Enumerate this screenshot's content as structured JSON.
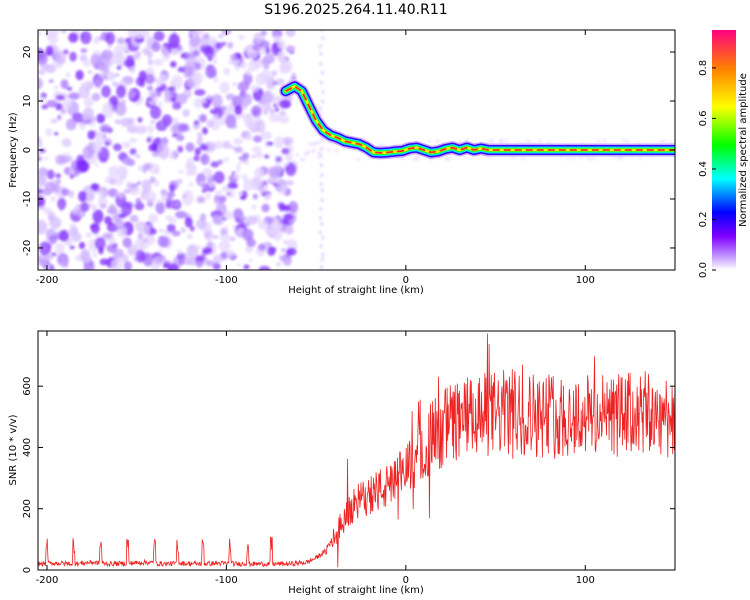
{
  "title": "S196.2025.264.11.40.R11",
  "chart_data": [
    {
      "type": "heatmap",
      "name": "spectrogram",
      "xlabel": "Height of straight line (km)",
      "ylabel": "Frequency (Hz)",
      "xlim": [
        -205,
        150
      ],
      "ylim": [
        -24.5,
        24.5
      ],
      "x_ticks": [
        -200,
        -100,
        0,
        100
      ],
      "x_tick_labels": [
        "-200",
        "-100",
        "0",
        "100"
      ],
      "y_ticks": [
        -20,
        -10,
        0,
        10,
        20
      ],
      "y_tick_labels": [
        "-20",
        "-10",
        "0",
        "10",
        "20"
      ],
      "noise_region_x": [
        -205,
        -62
      ],
      "trace": {
        "x": [
          -67,
          -62,
          -58,
          -54,
          -50,
          -46,
          -42,
          -38,
          -34,
          -30,
          -26,
          -22,
          -18,
          -14,
          -10,
          -6,
          -2,
          2,
          6,
          10,
          14,
          18,
          22,
          26,
          30,
          34,
          38,
          42,
          46,
          50,
          60,
          70,
          80,
          90,
          100,
          110,
          120,
          130,
          140,
          150
        ],
        "y": [
          12,
          13,
          12,
          9,
          6,
          4,
          3,
          2.5,
          1.8,
          1.5,
          1.2,
          0.5,
          -0.5,
          -0.6,
          -0.5,
          -0.3,
          -0.2,
          0.3,
          0.5,
          0,
          -0.5,
          -0.3,
          0.2,
          0.5,
          0,
          0.5,
          0,
          0.3,
          0,
          0,
          0,
          0,
          0,
          0,
          0,
          0,
          0,
          0,
          0,
          0
        ]
      },
      "colorbar": {
        "label": "Normalized spectral amplitude",
        "range": [
          0,
          0.95
        ],
        "ticks": [
          0.0,
          0.2,
          0.4,
          0.6,
          0.8
        ],
        "tick_labels": [
          "0.0",
          "0.2",
          "0.4",
          "0.6",
          "0.8"
        ],
        "colors": [
          "#ffffff",
          "#8000ff",
          "#0000ff",
          "#00ffff",
          "#00ff00",
          "#ffff00",
          "#ff8000",
          "#ff0080"
        ]
      }
    },
    {
      "type": "line",
      "name": "snr",
      "xlabel": "Height of straight line (km)",
      "ylabel": "SNR (10 * v/v)",
      "xlim": [
        -205,
        150
      ],
      "ylim": [
        0,
        780
      ],
      "x_ticks": [
        -200,
        -100,
        0,
        100
      ],
      "x_tick_labels": [
        "-200",
        "-100",
        "0",
        "100"
      ],
      "y_ticks": [
        0,
        200,
        400,
        600
      ],
      "y_tick_labels": [
        "0",
        "200",
        "400",
        "600"
      ],
      "color": "#ee2222",
      "series": [
        {
          "name": "SNR",
          "x": [
            -205,
            -195,
            -185,
            -175,
            -165,
            -155,
            -145,
            -135,
            -125,
            -115,
            -105,
            -95,
            -85,
            -75,
            -65,
            -55,
            -50,
            -45,
            -40,
            -35,
            -30,
            -25,
            -20,
            -15,
            -10,
            -5,
            0,
            5,
            10,
            15,
            20,
            25,
            30,
            40,
            50,
            60,
            70,
            80,
            90,
            100,
            110,
            120,
            130,
            140,
            150
          ],
          "values": [
            20,
            22,
            20,
            25,
            20,
            22,
            25,
            20,
            22,
            20,
            22,
            20,
            20,
            20,
            20,
            25,
            40,
            60,
            110,
            160,
            200,
            230,
            250,
            260,
            270,
            290,
            330,
            370,
            400,
            440,
            460,
            480,
            490,
            500,
            510,
            515,
            510,
            505,
            500,
            505,
            500,
            505,
            510,
            500,
            510
          ]
        }
      ]
    }
  ]
}
